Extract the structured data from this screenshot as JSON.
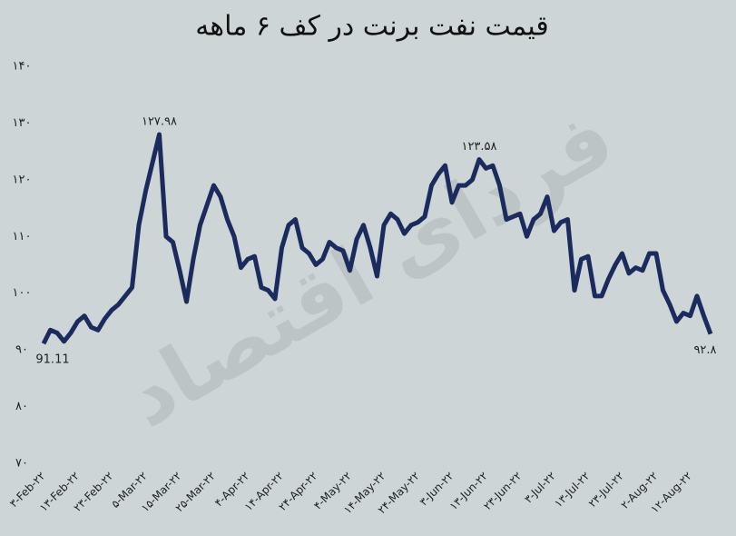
{
  "chart_data": {
    "type": "line",
    "title": "قیمت نفت برنت در کف ۶ ماهه",
    "watermark": "فردای اقتصاد",
    "categories": [
      "۳-Feb-۲۲",
      null,
      null,
      null,
      null,
      "۱۳-Feb-۲۲",
      null,
      null,
      null,
      null,
      "۲۳-Feb-۲۲",
      null,
      null,
      null,
      null,
      "۵-Mar-۲۲",
      null,
      null,
      null,
      null,
      "۱۵-Mar-۲۲",
      null,
      null,
      null,
      null,
      "۲۵-Mar-۲۲",
      null,
      null,
      null,
      null,
      "۴-Apr-۲۲",
      null,
      null,
      null,
      null,
      "۱۴-Apr-۲۲",
      null,
      null,
      null,
      null,
      "۲۴-Apr-۲۲",
      null,
      null,
      null,
      null,
      "۴-May-۲۲",
      null,
      null,
      null,
      null,
      "۱۴-May-۲۲",
      null,
      null,
      null,
      null,
      "۲۴-May-۲۲",
      null,
      null,
      null,
      null,
      "۳-Jun-۲۲",
      null,
      null,
      null,
      null,
      "۱۳-Jun-۲۲",
      null,
      null,
      null,
      null,
      "۲۳-Jun-۲۲",
      null,
      null,
      null,
      null,
      "۳-Jul-۲۲",
      null,
      null,
      null,
      null,
      "۱۳-Jul-۲۲",
      null,
      null,
      null,
      null,
      "۲۳-Jul-۲۲",
      null,
      null,
      null,
      null,
      "۲-Aug-۲۲",
      null,
      null,
      null,
      null,
      "۱۲-Aug-۲۲",
      null,
      null,
      null
    ],
    "series": [
      {
        "name": "Brent",
        "color": "#1c2b5e",
        "values": [
          91.11,
          93.5,
          93,
          91.5,
          93,
          95,
          96,
          94,
          93.5,
          95.5,
          97,
          98,
          99.5,
          101,
          112,
          118,
          123,
          127.98,
          110,
          109,
          104,
          98.5,
          106,
          112,
          115.5,
          119,
          117,
          113,
          110,
          104.5,
          106,
          106.5,
          101,
          100.5,
          99,
          108,
          112,
          113,
          108,
          107,
          105,
          106,
          109,
          108,
          107.5,
          104,
          109.5,
          112,
          108,
          103,
          112,
          114,
          113,
          110.5,
          112,
          112.5,
          113.5,
          119,
          121,
          122.5,
          116,
          119,
          119,
          120,
          123.58,
          122,
          122.5,
          119,
          113,
          113.5,
          114,
          110,
          113,
          114,
          117,
          111,
          112.5,
          113,
          100.5,
          106,
          106.5,
          99.5,
          99.5,
          102.5,
          105,
          107,
          103.5,
          104.5,
          104,
          107,
          107,
          100.5,
          98,
          95,
          96.5,
          96,
          99.5,
          96,
          92.8
        ],
        "value_labels": [
          "91.11",
          null,
          null,
          null,
          null,
          null,
          null,
          null,
          null,
          null,
          null,
          null,
          null,
          null,
          null,
          null,
          null,
          "۱۲۷.۹۸",
          null,
          null,
          null,
          null,
          null,
          null,
          null,
          null,
          null,
          null,
          null,
          null,
          null,
          null,
          null,
          null,
          null,
          null,
          null,
          null,
          null,
          null,
          null,
          null,
          null,
          null,
          null,
          null,
          null,
          null,
          null,
          null,
          null,
          null,
          null,
          null,
          null,
          null,
          null,
          null,
          null,
          null,
          null,
          null,
          null,
          null,
          "۱۲۳.۵۸",
          null,
          null,
          null,
          null,
          null,
          null,
          null,
          null,
          null,
          null,
          null,
          null,
          null,
          null,
          null,
          null,
          null,
          null,
          null,
          null,
          null,
          null,
          null,
          null,
          null,
          null,
          null,
          null,
          null,
          null,
          null,
          null,
          null,
          "۹۲.۸"
        ]
      }
    ],
    "ylim": [
      70,
      140
    ],
    "yticks": [
      {
        "value": 70,
        "label": "۷۰"
      },
      {
        "value": 80,
        "label": "۸۰"
      },
      {
        "value": 90,
        "label": "۹۰"
      },
      {
        "value": 100,
        "label": "۱۰۰"
      },
      {
        "value": 110,
        "label": "۱۱۰"
      },
      {
        "value": 120,
        "label": "۱۲۰"
      },
      {
        "value": 130,
        "label": "۱۳۰"
      },
      {
        "value": 140,
        "label": "۱۴۰"
      }
    ],
    "grid": false
  }
}
